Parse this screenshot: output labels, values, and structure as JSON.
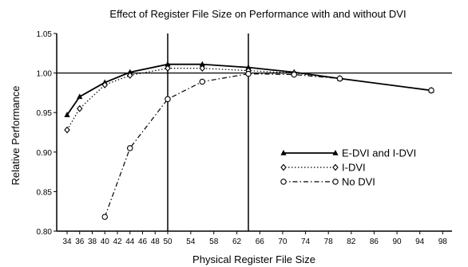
{
  "chart_data": {
    "type": "line",
    "title": "Effect of Register File Size on Performance with and without DVI",
    "xlabel": "Physical Register File Size",
    "ylabel": "Relative Performance",
    "xlim": [
      32,
      100
    ],
    "ylim": [
      0.8,
      1.05
    ],
    "x_ticks": [
      "34",
      "36",
      "38",
      "40",
      "42",
      "44",
      "46",
      "48",
      "50",
      "54",
      "58",
      "62",
      "66",
      "70",
      "74",
      "78",
      "82",
      "86",
      "90",
      "94",
      "98"
    ],
    "x_tick_values": [
      34,
      36,
      38,
      40,
      42,
      44,
      46,
      48,
      50,
      54,
      58,
      62,
      66,
      70,
      74,
      78,
      82,
      86,
      90,
      94,
      98
    ],
    "y_ticks": [
      "0.80",
      "0.85",
      "0.90",
      "0.95",
      "1.00",
      "1.05"
    ],
    "y_tick_values": [
      0.8,
      0.85,
      0.9,
      0.95,
      1.0,
      1.05
    ],
    "reference_line_y": 1.0,
    "vertical_lines_x": [
      50,
      64
    ],
    "legend_position": "right",
    "series": [
      {
        "name": "E-DVI and I-DVI",
        "style": "solid-triangle",
        "color": "#000000",
        "x": [
          34,
          36,
          40,
          44,
          50,
          56,
          64,
          72,
          80,
          96
        ],
        "y": [
          0.947,
          0.97,
          0.988,
          1.001,
          1.011,
          1.011,
          1.007,
          1.001,
          0.993,
          0.978
        ]
      },
      {
        "name": "I-DVI",
        "style": "dotted-diamond",
        "color": "#000000",
        "x": [
          34,
          36,
          40,
          44,
          50,
          56,
          64,
          72,
          80,
          96
        ],
        "y": [
          0.928,
          0.955,
          0.985,
          0.997,
          1.006,
          1.006,
          1.003,
          1.0,
          0.993,
          0.978
        ]
      },
      {
        "name": "No DVI",
        "style": "dashdot-circle",
        "color": "#000000",
        "x": [
          40,
          44,
          50,
          56,
          64,
          72,
          80,
          96
        ],
        "y": [
          0.818,
          0.905,
          0.967,
          0.989,
          0.999,
          0.998,
          0.993,
          0.978
        ]
      }
    ]
  }
}
